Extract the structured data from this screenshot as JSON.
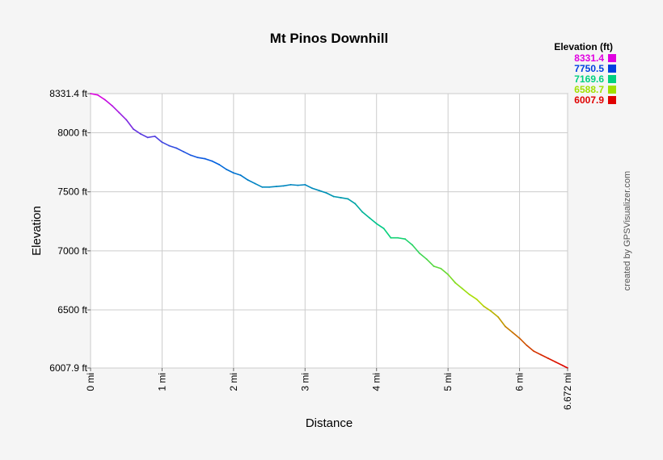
{
  "chart_data": {
    "type": "line",
    "title": "Mt Pinos Downhill",
    "xlabel": "Distance",
    "ylabel": "Elevation",
    "xlim": [
      0,
      6.672
    ],
    "ylim": [
      6007.9,
      8331.4
    ],
    "x_ticks": [
      {
        "value": 0,
        "label": "0 mi"
      },
      {
        "value": 1,
        "label": "1 mi"
      },
      {
        "value": 2,
        "label": "2 mi"
      },
      {
        "value": 3,
        "label": "3 mi"
      },
      {
        "value": 4,
        "label": "4 mi"
      },
      {
        "value": 5,
        "label": "5 mi"
      },
      {
        "value": 6,
        "label": "6 mi"
      },
      {
        "value": 6.672,
        "label": "6.672 mi"
      }
    ],
    "y_ticks": [
      {
        "value": 6007.9,
        "label": "6007.9 ft"
      },
      {
        "value": 6500,
        "label": "6500 ft"
      },
      {
        "value": 7000,
        "label": "7000 ft"
      },
      {
        "value": 7500,
        "label": "7500 ft"
      },
      {
        "value": 8000,
        "label": "8000 ft"
      },
      {
        "value": 8331.4,
        "label": "8331.4 ft"
      }
    ],
    "grid": true,
    "legend": {
      "title": "Elevation (ft)",
      "placement": "top-right",
      "entries": [
        {
          "label": "8331.4",
          "color": "#e000e0"
        },
        {
          "label": "7750.5",
          "color": "#0040e0"
        },
        {
          "label": "7169.6",
          "color": "#00d080"
        },
        {
          "label": "6588.7",
          "color": "#a0e000"
        },
        {
          "label": "6007.9",
          "color": "#e00000"
        }
      ]
    },
    "series": [
      {
        "x": [
          0,
          0.1,
          0.2,
          0.3,
          0.4,
          0.5,
          0.6,
          0.7,
          0.8,
          0.9,
          1.0,
          1.1,
          1.2,
          1.3,
          1.4,
          1.5,
          1.6,
          1.7,
          1.8,
          1.9,
          2.0,
          2.1,
          2.2,
          2.3,
          2.4,
          2.5,
          2.6,
          2.7,
          2.8,
          2.9,
          3.0,
          3.1,
          3.2,
          3.3,
          3.4,
          3.5,
          3.6,
          3.7,
          3.8,
          3.9,
          4.0,
          4.1,
          4.2,
          4.3,
          4.4,
          4.5,
          4.6,
          4.7,
          4.8,
          4.9,
          5.0,
          5.1,
          5.2,
          5.3,
          5.4,
          5.5,
          5.6,
          5.7,
          5.8,
          5.9,
          6.0,
          6.1,
          6.2,
          6.3,
          6.4,
          6.5,
          6.6,
          6.672
        ],
        "y": [
          8331.4,
          8320,
          8280,
          8230,
          8170,
          8110,
          8030,
          7990,
          7960,
          7970,
          7920,
          7890,
          7870,
          7840,
          7810,
          7790,
          7780,
          7760,
          7730,
          7690,
          7660,
          7640,
          7600,
          7570,
          7540,
          7540,
          7545,
          7550,
          7560,
          7555,
          7560,
          7530,
          7510,
          7490,
          7460,
          7450,
          7440,
          7400,
          7330,
          7280,
          7230,
          7190,
          7110,
          7110,
          7100,
          7050,
          6980,
          6930,
          6870,
          6850,
          6800,
          6730,
          6680,
          6630,
          6590,
          6530,
          6490,
          6440,
          6360,
          6310,
          6260,
          6200,
          6150,
          6120,
          6090,
          6060,
          6030,
          6007.9
        ]
      }
    ]
  },
  "credit": "created by GPSVisualizer.com"
}
